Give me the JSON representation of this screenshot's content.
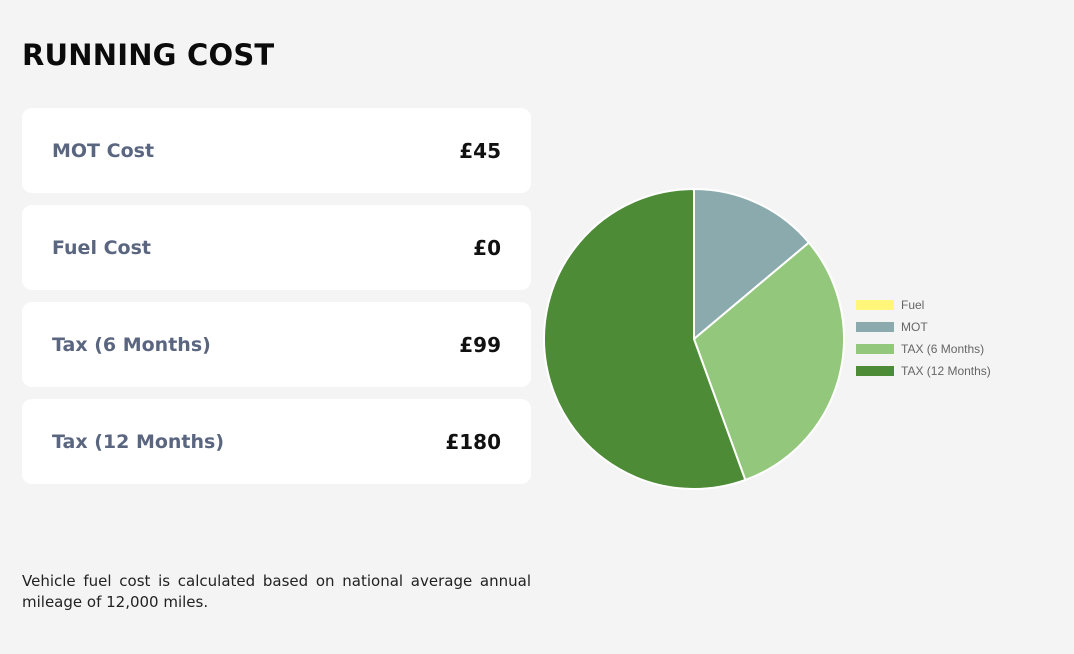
{
  "page": {
    "title": "RUNNING COST",
    "footnote": "Vehicle fuel cost is calculated based on national average annual mileage of 12,000 miles."
  },
  "costs": [
    {
      "label": "MOT Cost",
      "value": "£45"
    },
    {
      "label": "Fuel Cost",
      "value": "£0"
    },
    {
      "label": "Tax (6 Months)",
      "value": "£99"
    },
    {
      "label": "Tax (12 Months)",
      "value": "£180"
    }
  ],
  "chart_data": {
    "type": "pie",
    "title": "",
    "categories": [
      "Fuel",
      "MOT",
      "TAX (6 Months)",
      "TAX (12 Months)"
    ],
    "values": [
      0,
      45,
      99,
      180
    ],
    "colors": [
      "#fff67a",
      "#8aaaad",
      "#93c77c",
      "#4d8b36"
    ],
    "legend_position": "right"
  }
}
